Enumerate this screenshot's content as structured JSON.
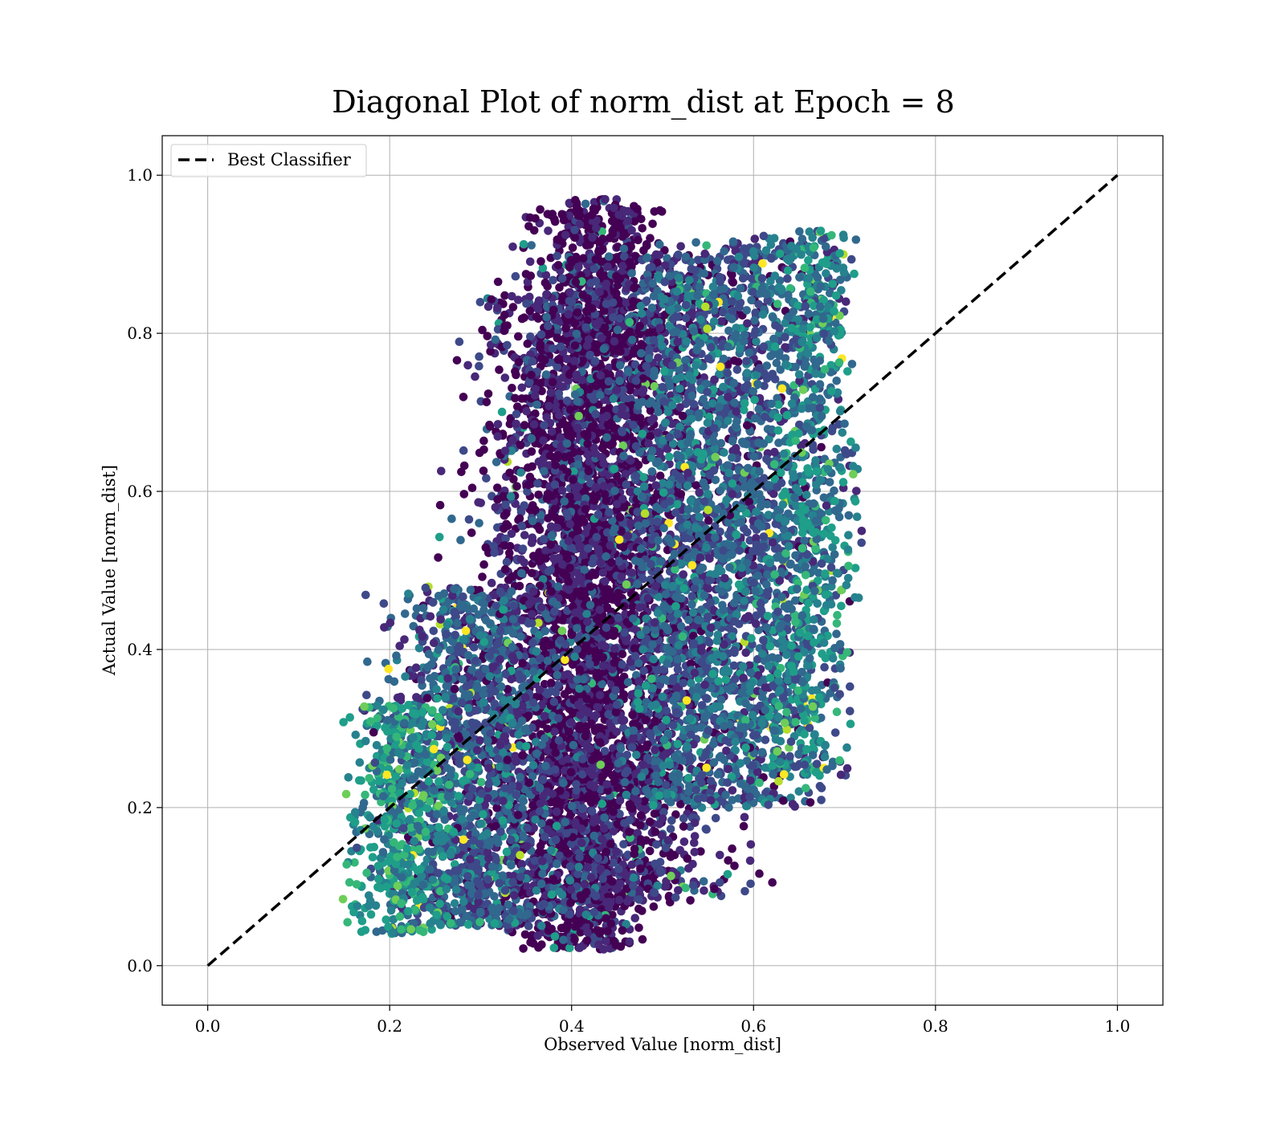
{
  "chart_data": {
    "type": "scatter",
    "title": "Diagonal Plot of norm_dist at Epoch = 8",
    "xlabel": "Observed Value [norm_dist]",
    "ylabel": "Actual Value [norm_dist]",
    "xlim": [
      -0.05,
      1.05
    ],
    "ylim": [
      -0.05,
      1.05
    ],
    "xticks": [
      0.0,
      0.2,
      0.4,
      0.6,
      0.8,
      1.0
    ],
    "yticks": [
      0.0,
      0.2,
      0.4,
      0.6,
      0.8,
      1.0
    ],
    "xtick_labels": [
      "0.0",
      "0.2",
      "0.4",
      "0.6",
      "0.8",
      "1.0"
    ],
    "ytick_labels": [
      "0.0",
      "0.2",
      "0.4",
      "0.6",
      "0.8",
      "1.0"
    ],
    "grid": true,
    "legend": {
      "placement": "top-left",
      "entries": [
        "Best Classifier"
      ]
    },
    "reference_line": {
      "name": "Best Classifier",
      "x": [
        0.0,
        1.0
      ],
      "y": [
        0.0,
        1.0
      ],
      "style": "dashed",
      "color": "#000000"
    },
    "colormap": [
      "#440154",
      "#482878",
      "#3e4989",
      "#31688e",
      "#26828e",
      "#1f9e89",
      "#35b779",
      "#6ece58",
      "#b5de2b",
      "#fde725"
    ],
    "scatter_clusters": [
      {
        "x_center": 0.42,
        "x_spread": 0.035,
        "y_min": 0.02,
        "y_max": 0.97,
        "color_level": 0.05,
        "count": 2600
      },
      {
        "x_center": 0.48,
        "x_spread": 0.05,
        "y_min": 0.08,
        "y_max": 0.9,
        "color_level": 0.15,
        "count": 1800
      },
      {
        "x_center": 0.36,
        "x_spread": 0.04,
        "y_min": 0.05,
        "y_max": 0.85,
        "color_level": 0.12,
        "count": 1200
      },
      {
        "x_center": 0.6,
        "x_spread": 0.045,
        "y_min": 0.2,
        "y_max": 0.92,
        "color_level": 0.3,
        "count": 1400
      },
      {
        "x_center": 0.66,
        "x_spread": 0.025,
        "y_min": 0.24,
        "y_max": 0.93,
        "color_level": 0.45,
        "count": 700
      },
      {
        "x_center": 0.53,
        "x_spread": 0.035,
        "y_min": 0.2,
        "y_max": 0.88,
        "color_level": 0.35,
        "count": 900
      },
      {
        "x_center": 0.3,
        "x_spread": 0.045,
        "y_min": 0.05,
        "y_max": 0.48,
        "color_level": 0.3,
        "count": 1300
      },
      {
        "x_center": 0.22,
        "x_spread": 0.03,
        "y_min": 0.04,
        "y_max": 0.33,
        "color_level": 0.5,
        "count": 500
      }
    ],
    "scatter_point_count_note": "dense cloud of points"
  }
}
